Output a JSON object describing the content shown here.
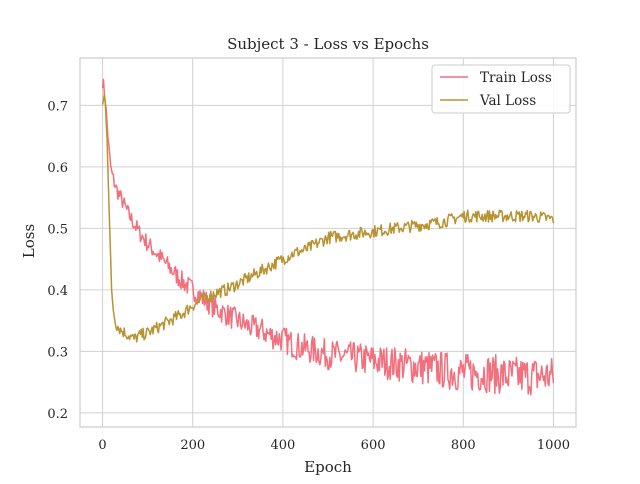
{
  "chart_data": {
    "type": "line",
    "title": "Subject 3 - Loss vs Epochs",
    "xlabel": "Epoch",
    "ylabel": "Loss",
    "xlim": [
      -50,
      1050
    ],
    "ylim": [
      0.177,
      0.777
    ],
    "xticks": [
      0,
      200,
      400,
      600,
      800,
      1000
    ],
    "yticks": [
      0.2,
      0.3,
      0.4,
      0.5,
      0.6,
      0.7
    ],
    "xtick_labels": [
      "0",
      "200",
      "400",
      "600",
      "800",
      "1000"
    ],
    "ytick_labels": [
      "0.2",
      "0.3",
      "0.4",
      "0.5",
      "0.6",
      "0.7"
    ],
    "grid": true,
    "legend_position": "top-right",
    "series": [
      {
        "name": "Train Loss",
        "color": "#f2707e",
        "x": [
          0,
          5,
          10,
          15,
          20,
          30,
          40,
          50,
          60,
          80,
          100,
          125,
          150,
          175,
          200,
          225,
          250,
          275,
          300,
          325,
          350,
          375,
          400,
          425,
          450,
          475,
          500,
          550,
          600,
          650,
          700,
          750,
          800,
          850,
          900,
          950,
          1000
        ],
        "y": [
          0.74,
          0.72,
          0.67,
          0.62,
          0.59,
          0.565,
          0.55,
          0.535,
          0.52,
          0.495,
          0.475,
          0.455,
          0.435,
          0.415,
          0.4,
          0.385,
          0.37,
          0.36,
          0.35,
          0.34,
          0.335,
          0.325,
          0.32,
          0.31,
          0.305,
          0.3,
          0.295,
          0.29,
          0.285,
          0.28,
          0.275,
          0.27,
          0.265,
          0.265,
          0.26,
          0.26,
          0.26
        ]
      },
      {
        "name": "Val Loss",
        "color": "#b89332",
        "x": [
          0,
          5,
          10,
          15,
          20,
          25,
          30,
          40,
          50,
          60,
          70,
          80,
          100,
          125,
          150,
          175,
          200,
          225,
          250,
          275,
          300,
          325,
          350,
          375,
          400,
          425,
          450,
          475,
          500,
          550,
          600,
          650,
          700,
          750,
          800,
          850,
          900,
          950,
          1000
        ],
        "y": [
          0.7,
          0.72,
          0.65,
          0.52,
          0.4,
          0.36,
          0.345,
          0.335,
          0.33,
          0.325,
          0.32,
          0.325,
          0.33,
          0.34,
          0.35,
          0.36,
          0.375,
          0.385,
          0.395,
          0.4,
          0.41,
          0.42,
          0.43,
          0.44,
          0.45,
          0.46,
          0.465,
          0.475,
          0.485,
          0.49,
          0.495,
          0.5,
          0.505,
          0.51,
          0.52,
          0.52,
          0.52,
          0.52,
          0.515
        ]
      }
    ]
  }
}
